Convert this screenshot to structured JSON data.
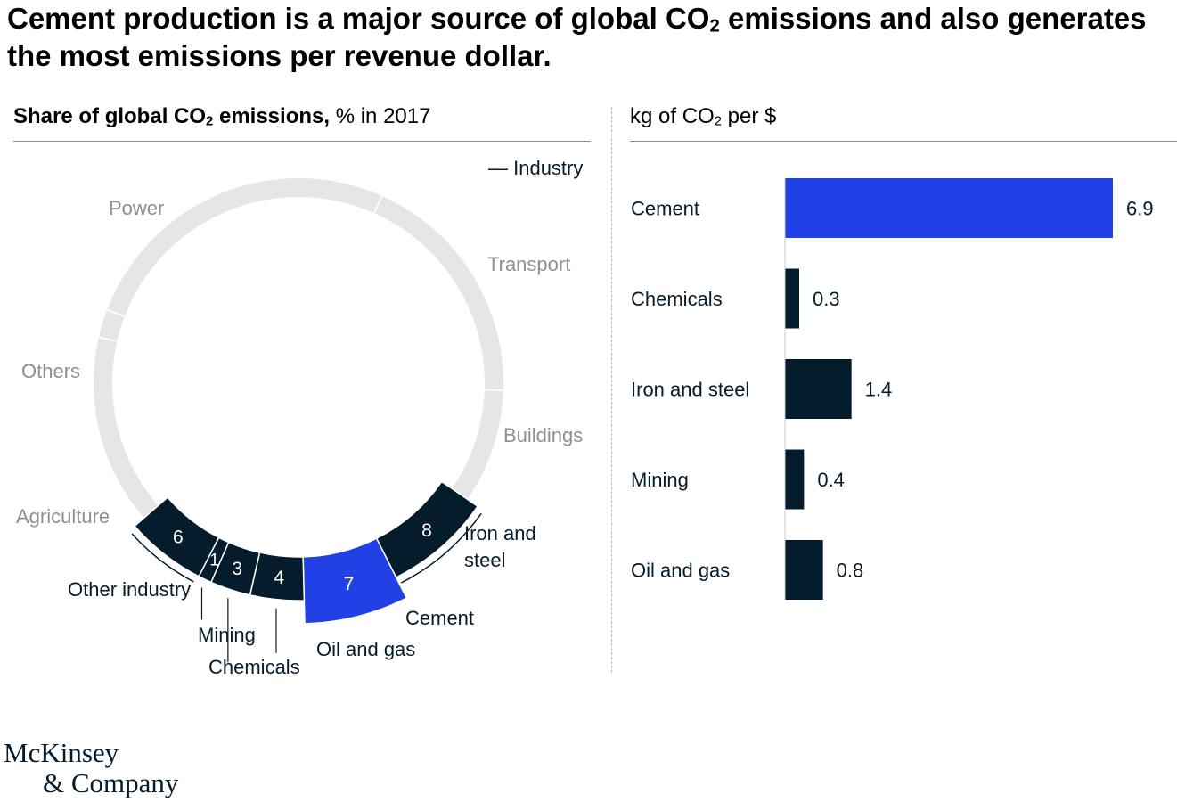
{
  "header": {
    "title_part1": "Cement production is a major source of global CO",
    "title_sub": "2",
    "title_part2": " emissions and also generates the most emissions per revenue dollar."
  },
  "left_panel": {
    "title_bold_a": "Share of global CO",
    "title_bold_sub": "2",
    "title_bold_b": " emissions,",
    "title_unit": " % in 2017",
    "legend_industry": "— Industry"
  },
  "right_panel": {
    "title_a": "kg of CO",
    "title_sub": "2",
    "title_b": " per $"
  },
  "chart_data": [
    {
      "type": "pie",
      "title": "Share of global CO2 emissions, % in 2017",
      "legend": [
        "Industry"
      ],
      "sectors": [
        {
          "label": "Power",
          "value": null
        },
        {
          "label": "Transport",
          "value": null
        },
        {
          "label": "Buildings",
          "value": null
        },
        {
          "label": "Others",
          "value": null
        },
        {
          "label": "Agriculture",
          "value": null
        }
      ],
      "industry_segments": [
        {
          "label": "Iron and steel",
          "value": 8
        },
        {
          "label": "Cement",
          "value": 7
        },
        {
          "label": "Oil and gas",
          "value": 4
        },
        {
          "label": "Chemicals",
          "value": 3
        },
        {
          "label": "Mining",
          "value": 1
        },
        {
          "label": "Other industry",
          "value": 6
        }
      ],
      "highlight": "Cement",
      "colors": {
        "highlight": "#2140e6",
        "industry": "#051c2c",
        "other": "#e6e6e6",
        "separator": "#ffffff"
      }
    },
    {
      "type": "bar",
      "orientation": "horizontal",
      "title": "kg of CO2 per $",
      "categories": [
        "Cement",
        "Chemicals",
        "Iron and steel",
        "Mining",
        "Oil and gas"
      ],
      "values": [
        6.9,
        0.3,
        1.4,
        0.4,
        0.8
      ],
      "value_labels": [
        "6.9",
        "0.3",
        "1.4",
        "0.4",
        "0.8"
      ],
      "highlight": "Cement",
      "xlim": [
        0,
        6.9
      ],
      "colors": {
        "highlight": "#2140e6",
        "default": "#051c2c"
      }
    }
  ],
  "logo": {
    "line1": "McKinsey",
    "line2": "& Company"
  }
}
